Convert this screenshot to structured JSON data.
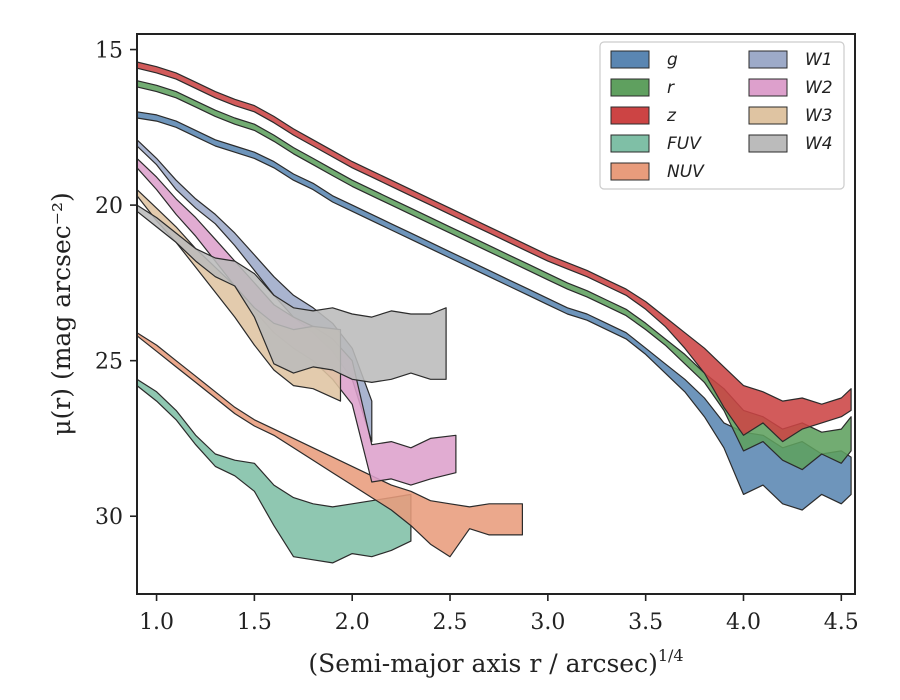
{
  "chart_data": {
    "type": "area",
    "xlabel": "(Semi-major axis r / arcsec)",
    "xlabel_sup": "1/4",
    "ylabel": "μ(r) (mag arcsec⁻²)",
    "xlim": [
      0.9,
      4.57
    ],
    "ylim": [
      32.5,
      14.5
    ],
    "y_inverted": true,
    "x_ticks": [
      1.0,
      1.5,
      2.0,
      2.5,
      3.0,
      3.5,
      4.0,
      4.5
    ],
    "x_tick_labels": [
      "1.0",
      "1.5",
      "2.0",
      "2.5",
      "3.0",
      "3.5",
      "4.0",
      "4.5"
    ],
    "y_ticks": [
      15,
      20,
      25,
      30
    ],
    "y_tick_labels": [
      "15",
      "20",
      "25",
      "30"
    ],
    "grid": false,
    "legend": {
      "placement": "top-right",
      "columns": 2
    },
    "series": [
      {
        "name": "g",
        "color": "#5a86b2",
        "x": [
          0.9,
          1.0,
          1.1,
          1.2,
          1.3,
          1.4,
          1.5,
          1.6,
          1.7,
          1.8,
          1.9,
          2.0,
          2.1,
          2.2,
          2.3,
          2.4,
          2.5,
          2.6,
          2.7,
          2.8,
          2.9,
          3.0,
          3.1,
          3.2,
          3.3,
          3.4,
          3.5,
          3.6,
          3.7,
          3.8,
          3.9,
          4.0,
          4.1,
          4.2,
          4.3,
          4.4,
          4.5,
          4.55
        ],
        "y_upper": [
          17.0,
          17.1,
          17.3,
          17.6,
          17.9,
          18.1,
          18.3,
          18.6,
          19.0,
          19.3,
          19.7,
          20.0,
          20.3,
          20.6,
          20.9,
          21.2,
          21.5,
          21.8,
          22.1,
          22.4,
          22.7,
          23.0,
          23.3,
          23.5,
          23.8,
          24.1,
          24.6,
          25.1,
          25.6,
          26.2,
          27.0,
          27.3,
          27.4,
          27.8,
          27.6,
          28.0,
          27.9,
          28.1
        ],
        "y_lower": [
          17.2,
          17.3,
          17.5,
          17.8,
          18.1,
          18.3,
          18.5,
          18.8,
          19.2,
          19.5,
          19.9,
          20.2,
          20.5,
          20.8,
          21.1,
          21.4,
          21.7,
          22.0,
          22.3,
          22.6,
          22.9,
          23.2,
          23.5,
          23.7,
          24.0,
          24.3,
          24.8,
          25.4,
          26.0,
          26.8,
          27.8,
          29.3,
          29.0,
          29.6,
          29.8,
          29.3,
          29.6,
          29.3
        ]
      },
      {
        "name": "r",
        "color": "#5fa05f",
        "x": [
          0.9,
          1.0,
          1.1,
          1.2,
          1.3,
          1.4,
          1.5,
          1.6,
          1.7,
          1.8,
          1.9,
          2.0,
          2.1,
          2.2,
          2.3,
          2.4,
          2.5,
          2.6,
          2.7,
          2.8,
          2.9,
          3.0,
          3.1,
          3.2,
          3.3,
          3.4,
          3.5,
          3.6,
          3.7,
          3.8,
          3.9,
          4.0,
          4.1,
          4.2,
          4.3,
          4.4,
          4.5,
          4.55
        ],
        "y_upper": [
          16.0,
          16.15,
          16.35,
          16.65,
          16.95,
          17.2,
          17.4,
          17.75,
          18.15,
          18.5,
          18.85,
          19.2,
          19.5,
          19.8,
          20.1,
          20.4,
          20.7,
          21.0,
          21.3,
          21.6,
          21.9,
          22.2,
          22.5,
          22.75,
          23.05,
          23.35,
          23.8,
          24.3,
          24.8,
          25.4,
          25.9,
          26.6,
          26.8,
          27.2,
          27.0,
          27.3,
          27.2,
          26.8
        ],
        "y_lower": [
          16.2,
          16.35,
          16.55,
          16.85,
          17.15,
          17.4,
          17.6,
          17.95,
          18.35,
          18.7,
          19.05,
          19.4,
          19.7,
          20.0,
          20.3,
          20.6,
          20.9,
          21.2,
          21.5,
          21.8,
          22.1,
          22.4,
          22.7,
          22.95,
          23.25,
          23.55,
          24.0,
          24.5,
          25.1,
          25.7,
          26.6,
          27.9,
          27.6,
          28.2,
          28.5,
          28.0,
          28.3,
          27.9
        ]
      },
      {
        "name": "z",
        "color": "#cc4444",
        "x": [
          0.9,
          1.0,
          1.1,
          1.2,
          1.3,
          1.4,
          1.5,
          1.6,
          1.7,
          1.8,
          1.9,
          2.0,
          2.1,
          2.2,
          2.3,
          2.4,
          2.5,
          2.6,
          2.7,
          2.8,
          2.9,
          3.0,
          3.1,
          3.2,
          3.3,
          3.4,
          3.5,
          3.6,
          3.7,
          3.8,
          3.9,
          4.0,
          4.1,
          4.2,
          4.3,
          4.4,
          4.5,
          4.55
        ],
        "y_upper": [
          15.4,
          15.55,
          15.75,
          16.05,
          16.35,
          16.6,
          16.8,
          17.15,
          17.55,
          17.9,
          18.25,
          18.6,
          18.9,
          19.2,
          19.5,
          19.8,
          20.1,
          20.4,
          20.7,
          21.0,
          21.3,
          21.6,
          21.85,
          22.1,
          22.4,
          22.7,
          23.1,
          23.6,
          24.1,
          24.6,
          25.2,
          25.8,
          26.0,
          26.3,
          26.2,
          26.4,
          26.2,
          25.9
        ],
        "y_lower": [
          15.6,
          15.75,
          15.95,
          16.25,
          16.55,
          16.8,
          17.0,
          17.35,
          17.75,
          18.1,
          18.45,
          18.8,
          19.1,
          19.4,
          19.7,
          20.0,
          20.3,
          20.6,
          20.9,
          21.2,
          21.5,
          21.8,
          22.05,
          22.3,
          22.6,
          22.9,
          23.35,
          23.9,
          24.6,
          25.4,
          26.5,
          27.4,
          27.0,
          27.6,
          27.2,
          27.0,
          26.8,
          26.6
        ]
      },
      {
        "name": "FUV",
        "color": "#7fbfa6",
        "x": [
          0.9,
          1.0,
          1.1,
          1.2,
          1.3,
          1.4,
          1.5,
          1.6,
          1.7,
          1.8,
          1.9,
          2.0,
          2.1,
          2.2,
          2.3
        ],
        "y_upper": [
          25.6,
          26.0,
          26.6,
          27.4,
          28.0,
          28.2,
          28.3,
          29.0,
          29.4,
          29.6,
          29.7,
          29.6,
          29.5,
          29.4,
          29.3
        ],
        "y_lower": [
          25.8,
          26.3,
          26.9,
          27.7,
          28.4,
          28.7,
          29.2,
          30.3,
          31.3,
          31.4,
          31.5,
          31.2,
          31.3,
          31.1,
          30.8
        ]
      },
      {
        "name": "NUV",
        "color": "#e89c7c",
        "x": [
          0.9,
          1.0,
          1.1,
          1.2,
          1.3,
          1.4,
          1.5,
          1.6,
          1.7,
          1.8,
          1.9,
          2.0,
          2.1,
          2.2,
          2.3,
          2.4,
          2.5,
          2.6,
          2.7,
          2.87
        ],
        "y_upper": [
          24.1,
          24.5,
          25.0,
          25.5,
          26.0,
          26.5,
          26.9,
          27.2,
          27.5,
          27.8,
          28.1,
          28.4,
          28.7,
          29.0,
          29.2,
          29.5,
          29.6,
          29.7,
          29.6,
          29.6
        ],
        "y_lower": [
          24.2,
          24.7,
          25.2,
          25.7,
          26.2,
          26.7,
          27.1,
          27.4,
          27.8,
          28.2,
          28.6,
          29.0,
          29.4,
          29.8,
          30.3,
          30.9,
          31.3,
          30.4,
          30.6,
          30.6
        ]
      },
      {
        "name": "W1",
        "color": "#9daac8",
        "x": [
          0.9,
          1.0,
          1.1,
          1.2,
          1.3,
          1.4,
          1.5,
          1.6,
          1.7,
          1.8,
          1.9,
          2.0,
          2.1
        ],
        "y_upper": [
          17.9,
          18.5,
          19.2,
          19.8,
          20.3,
          20.9,
          21.6,
          22.3,
          22.9,
          23.3,
          23.8,
          24.6,
          26.3
        ],
        "y_lower": [
          18.1,
          18.7,
          19.5,
          20.1,
          20.6,
          21.3,
          22.1,
          22.9,
          23.6,
          24.1,
          24.7,
          25.6,
          27.6
        ]
      },
      {
        "name": "W2",
        "color": "#dda0cc",
        "x": [
          0.9,
          1.0,
          1.1,
          1.2,
          1.3,
          1.4,
          1.5,
          1.6,
          1.7,
          1.8,
          1.9,
          2.0,
          2.1,
          2.2,
          2.3,
          2.4,
          2.53
        ],
        "y_upper": [
          18.5,
          19.1,
          19.8,
          20.4,
          21.1,
          21.8,
          22.5,
          23.2,
          23.6,
          23.9,
          24.3,
          25.0,
          27.7,
          27.6,
          27.8,
          27.5,
          27.4
        ],
        "y_lower": [
          18.8,
          19.5,
          20.3,
          21.0,
          21.8,
          22.6,
          23.4,
          24.1,
          24.6,
          25.0,
          25.6,
          26.4,
          28.9,
          28.8,
          29.0,
          28.8,
          28.6
        ]
      },
      {
        "name": "W3",
        "color": "#dfc4a2",
        "x": [
          0.9,
          1.0,
          1.1,
          1.2,
          1.3,
          1.4,
          1.5,
          1.6,
          1.7,
          1.8,
          1.94
        ],
        "y_upper": [
          19.5,
          20.1,
          20.7,
          21.4,
          22.0,
          22.6,
          23.3,
          23.8,
          24.0,
          23.9,
          24.0
        ],
        "y_lower": [
          19.7,
          20.5,
          21.2,
          22.0,
          22.8,
          23.6,
          24.5,
          25.3,
          25.8,
          25.9,
          26.3
        ]
      },
      {
        "name": "W4",
        "color": "#bbbbbb",
        "x": [
          0.9,
          1.0,
          1.1,
          1.2,
          1.3,
          1.4,
          1.5,
          1.6,
          1.7,
          1.8,
          1.9,
          2.0,
          2.1,
          2.2,
          2.3,
          2.4,
          2.48
        ],
        "y_upper": [
          20.0,
          20.4,
          20.9,
          21.4,
          21.7,
          21.8,
          22.2,
          22.9,
          23.3,
          23.4,
          23.3,
          23.5,
          23.6,
          23.4,
          23.5,
          23.5,
          23.3
        ],
        "y_lower": [
          20.2,
          20.7,
          21.2,
          21.8,
          22.3,
          22.6,
          23.6,
          25.1,
          25.4,
          25.2,
          25.3,
          25.6,
          25.7,
          25.6,
          25.4,
          25.6,
          25.6
        ]
      }
    ]
  }
}
